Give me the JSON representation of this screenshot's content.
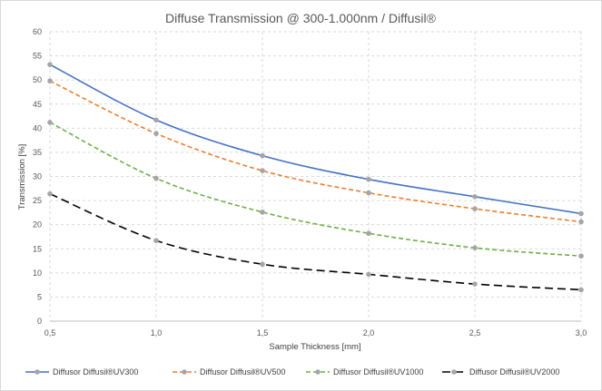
{
  "chart_data": {
    "type": "line",
    "title": "Diffuse Transmission @ 300-1.000nm / Diffusil®",
    "xlabel": "Sample Thickness [mm]",
    "ylabel": "Transmission [%]",
    "x": [
      0.5,
      1.0,
      1.5,
      2.0,
      2.5,
      3.0
    ],
    "x_tick_labels": [
      "0,5",
      "1,0",
      "1,5",
      "2,0",
      "2,5",
      "3,0"
    ],
    "xlim": [
      0.5,
      3.0
    ],
    "ylim": [
      0,
      60
    ],
    "y_ticks": [
      0,
      5,
      10,
      15,
      20,
      25,
      30,
      35,
      40,
      45,
      50,
      55,
      60
    ],
    "grid": "dashed",
    "legend_position": "bottom",
    "series": [
      {
        "name": "Diffusor Diffusil®UV300",
        "values": [
          53.2,
          41.7,
          34.3,
          29.4,
          25.8,
          22.3
        ],
        "color": "#4472c4",
        "dash": "solid"
      },
      {
        "name": "Diffusor Diffusil®UV500",
        "values": [
          49.8,
          38.9,
          31.2,
          26.6,
          23.3,
          20.6
        ],
        "color": "#ed7d31",
        "dash": "dashed"
      },
      {
        "name": "Diffusor Diffusil®UV1000",
        "values": [
          41.2,
          29.6,
          22.6,
          18.2,
          15.2,
          13.5
        ],
        "color": "#70ad47",
        "dash": "dashed"
      },
      {
        "name": "Diffusor Diffusil®UV2000",
        "values": [
          26.4,
          16.7,
          11.8,
          9.7,
          7.7,
          6.5
        ],
        "color": "#000000",
        "dash": "longdash"
      }
    ],
    "marker_color": "#a5a5a5"
  }
}
